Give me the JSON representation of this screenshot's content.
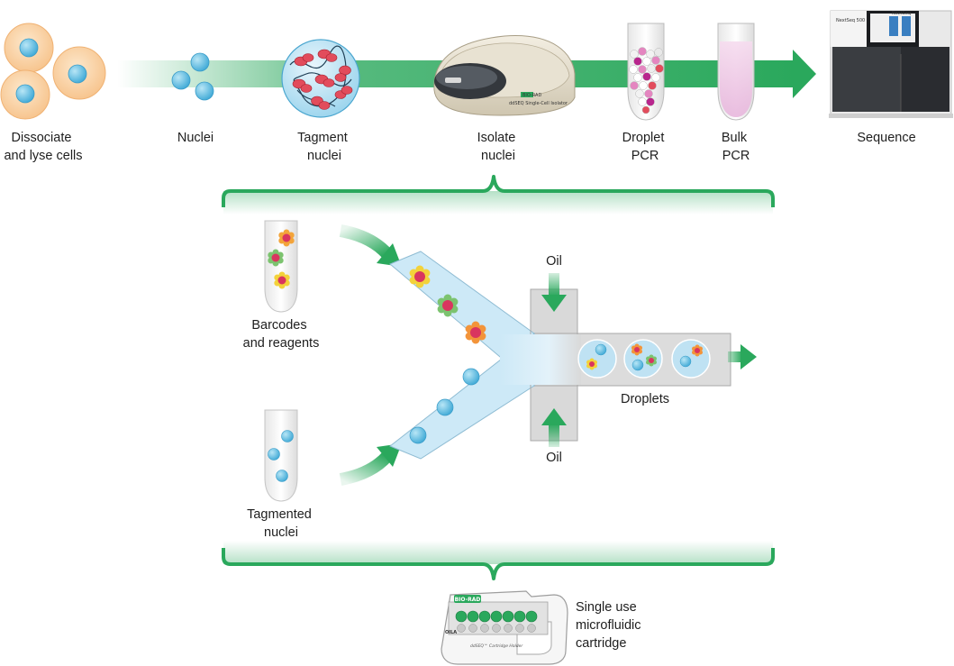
{
  "colors": {
    "green": "#2aa85c",
    "green_light": "#c9ecd6",
    "cell_fill": "#fbd9b3",
    "nucleus_blue": "#7cc9e6",
    "channel_blue": "#cde9f7",
    "channel_gray": "#d9d9d9"
  },
  "steps": [
    {
      "id": "dissociate",
      "lines": [
        "Dissociate",
        "and lyse cells"
      ]
    },
    {
      "id": "nuclei",
      "lines": [
        "Nuclei"
      ]
    },
    {
      "id": "tagment",
      "lines": [
        "Tagment",
        "nuclei"
      ]
    },
    {
      "id": "isolate",
      "lines": [
        "Isolate",
        "nuclei"
      ]
    },
    {
      "id": "droplet-pcr",
      "lines": [
        "Droplet",
        "PCR"
      ]
    },
    {
      "id": "bulk-pcr",
      "lines": [
        "Bulk",
        "PCR"
      ]
    },
    {
      "id": "sequence",
      "lines": [
        "Sequence"
      ]
    }
  ],
  "detail": {
    "barcodes_lines": [
      "Barcodes",
      "and reagents"
    ],
    "tagmented_lines": [
      "Tagmented",
      "nuclei"
    ],
    "oil_top": "Oil",
    "oil_bottom": "Oil",
    "droplets": "Droplets"
  },
  "cartridge": {
    "label_lines": [
      "Single use",
      "microfluidic",
      "cartridge"
    ],
    "logo": "BIO-RAD",
    "side_text": "OILA",
    "holder_text": "ddSEQ™ Cartridge Holder"
  },
  "device": {
    "logo": "BIO-RAD",
    "model_text": "ddSEQ Single-Cell Isolator"
  },
  "sequencer": {
    "model_text": "NextSeq 500",
    "screen_text": "NextSeq"
  }
}
